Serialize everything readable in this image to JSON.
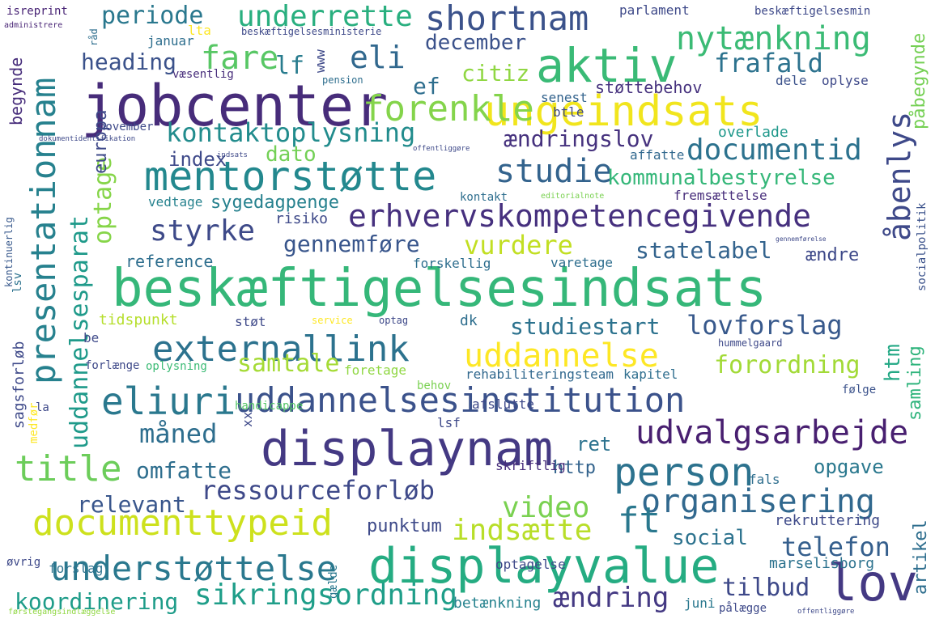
{
  "words": [
    {
      "text": "beskæftigelsesindsats",
      "color": "#35b779"
    },
    {
      "text": "jobcenter",
      "color": "#472c7a"
    },
    {
      "text": "displaynam",
      "color": "#443983"
    },
    {
      "text": "displayvalue",
      "color": "#25ac82"
    },
    {
      "text": "mentorstøtte",
      "color": "#23888e"
    },
    {
      "text": "ungeindsats",
      "color": "#f1e51d"
    },
    {
      "text": "aktiv",
      "color": "#3aba76"
    },
    {
      "text": "lov",
      "color": "#443983"
    },
    {
      "text": "presentationnam",
      "color": "#26818e"
    },
    {
      "text": "erhvervskompetencegivende",
      "color": "#46307e"
    },
    {
      "text": "uddannelsesinstitution",
      "color": "#3b528b"
    },
    {
      "text": "documenttypeid",
      "color": "#cde11d"
    },
    {
      "text": "eliuri",
      "color": "#2a788e"
    },
    {
      "text": "externallink",
      "color": "#2c728e"
    },
    {
      "text": "uddannelse",
      "color": "#fde725"
    },
    {
      "text": "title",
      "color": "#6ccd5a"
    },
    {
      "text": "person",
      "color": "#2c728e"
    },
    {
      "text": "understøttelse",
      "color": "#2a788e"
    },
    {
      "text": "forenkle",
      "color": "#84d44b"
    },
    {
      "text": "shortnam",
      "color": "#3b528b"
    },
    {
      "text": "nytænkning",
      "color": "#3bbb75"
    },
    {
      "text": "studie",
      "color": "#33638d"
    },
    {
      "text": "documentid",
      "color": "#2c728e"
    },
    {
      "text": "udvalgsarbejde",
      "color": "#481f70"
    },
    {
      "text": "organisering",
      "color": "#31688e"
    },
    {
      "text": "uddannelsesparat",
      "color": "#1f9a8a"
    },
    {
      "text": "ressourceforløb",
      "color": "#3e4989"
    },
    {
      "text": "sikringsordning",
      "color": "#1f9e89"
    },
    {
      "text": "kontaktoplysning",
      "color": "#228c8d"
    },
    {
      "text": "underrette",
      "color": "#29af7f"
    },
    {
      "text": "eli",
      "color": "#31688e"
    },
    {
      "text": "fare",
      "color": "#58c765"
    },
    {
      "text": "styrke",
      "color": "#3e4a89"
    },
    {
      "text": "åbenlys",
      "color": "#3e4989"
    },
    {
      "text": "optage",
      "color": "#86d549"
    },
    {
      "text": "video",
      "color": "#7ad151"
    },
    {
      "text": "indsætte",
      "color": "#b8de29"
    },
    {
      "text": "måned",
      "color": "#2e6e8e"
    },
    {
      "text": "lovforslag",
      "color": "#38598c"
    },
    {
      "text": "forordning",
      "color": "#a2da37"
    },
    {
      "text": "kommunalbestyrelse",
      "color": "#35b779"
    },
    {
      "text": "telefon",
      "color": "#355f8d"
    },
    {
      "text": "tilbud",
      "color": "#3e4989"
    },
    {
      "text": "ændring",
      "color": "#443983"
    },
    {
      "text": "koordinering",
      "color": "#1e9c89"
    },
    {
      "text": "ft",
      "color": "#2a788e"
    },
    {
      "text": "frafald",
      "color": "#2c728e"
    },
    {
      "text": "statelabel",
      "color": "#33638d"
    },
    {
      "text": "vurdere",
      "color": "#c2df23"
    },
    {
      "text": "gennemføre",
      "color": "#39568c"
    },
    {
      "text": "ændringslov",
      "color": "#46327e"
    },
    {
      "text": "studiestart",
      "color": "#2c728e"
    },
    {
      "text": "samtale",
      "color": "#a5db36"
    },
    {
      "text": "omfatte",
      "color": "#2e6e8e"
    },
    {
      "text": "relevant",
      "color": "#39568c"
    },
    {
      "text": "periode",
      "color": "#2a788e"
    },
    {
      "text": "heading",
      "color": "#3b528b"
    },
    {
      "text": "citiz",
      "color": "#90d743"
    },
    {
      "text": "december",
      "color": "#3b528b"
    },
    {
      "text": "ef",
      "color": "#2e6e8e"
    },
    {
      "text": "lf",
      "color": "#287c8e"
    },
    {
      "text": "dato",
      "color": "#73d056"
    },
    {
      "text": "index",
      "color": "#3e4989"
    },
    {
      "text": "social",
      "color": "#2c728e"
    },
    {
      "text": "opgave",
      "color": "#2a788e"
    },
    {
      "text": "ret",
      "color": "#2c728e"
    },
    {
      "text": "http",
      "color": "#33638d"
    },
    {
      "text": "punktum",
      "color": "#3e4a89"
    },
    {
      "text": "artikel",
      "color": "#2e6e8e"
    },
    {
      "text": "htm",
      "color": "#22a884"
    },
    {
      "text": "samling",
      "color": "#2fb47c"
    },
    {
      "text": "påbegynde",
      "color": "#75d054"
    },
    {
      "text": "europa",
      "color": "#3e4989"
    },
    {
      "text": "begynde",
      "color": "#472d7b"
    },
    {
      "text": "sygedagpenge",
      "color": "#26818e"
    },
    {
      "text": "risiko",
      "color": "#3e4989"
    },
    {
      "text": "reference",
      "color": "#2e6e8e"
    },
    {
      "text": "ændre",
      "color": "#3e4989"
    },
    {
      "text": "vedtage",
      "color": "#26828e"
    },
    {
      "text": "støttebehov",
      "color": "#46327e"
    },
    {
      "text": "oplyse",
      "color": "#3e4989"
    },
    {
      "text": "dele",
      "color": "#3b528b"
    },
    {
      "text": "senest",
      "color": "#33638d"
    },
    {
      "text": "btle",
      "color": "#3e4989"
    },
    {
      "text": "overlade",
      "color": "#1f988b"
    },
    {
      "text": "affatte",
      "color": "#31688e"
    },
    {
      "text": "fremsættelse",
      "color": "#472d7b"
    },
    {
      "text": "kontakt",
      "color": "#2e6e8e"
    },
    {
      "text": "forskellig",
      "color": "#2e6e8e"
    },
    {
      "text": "varetage",
      "color": "#2e6e8e"
    },
    {
      "text": "socialpolitik",
      "color": "#3b528b"
    },
    {
      "text": "rekruttering",
      "color": "#3e4a89"
    },
    {
      "text": "marselisborg",
      "color": "#2c728e"
    },
    {
      "text": "betænkning",
      "color": "#26828e"
    },
    {
      "text": "juni",
      "color": "#2a788e"
    },
    {
      "text": "pålægge",
      "color": "#3e4989"
    },
    {
      "text": "fals",
      "color": "#2e6e8e"
    },
    {
      "text": "skriftlig",
      "color": "#472d7b"
    },
    {
      "text": "afslutte",
      "color": "#3e4989"
    },
    {
      "text": "lsf",
      "color": "#3e4989"
    },
    {
      "text": "rehabiliteringsteam",
      "color": "#31688e"
    },
    {
      "text": "kapitel",
      "color": "#2e6e8e"
    },
    {
      "text": "følge",
      "color": "#3b528b"
    },
    {
      "text": "hummelgaard",
      "color": "#3e4989"
    },
    {
      "text": "dk",
      "color": "#2e6e8e"
    },
    {
      "text": "tidspunkt",
      "color": "#b5de2b"
    },
    {
      "text": "støt",
      "color": "#3e4989"
    },
    {
      "text": "be",
      "color": "#3e4989"
    },
    {
      "text": "forlænge",
      "color": "#3e4989"
    },
    {
      "text": "oplysning",
      "color": "#3bbb75"
    },
    {
      "text": "foretage",
      "color": "#90d743"
    },
    {
      "text": "behov",
      "color": "#7ad151"
    },
    {
      "text": "handicappe",
      "color": "#55c667"
    },
    {
      "text": "xx",
      "color": "#3e4989"
    },
    {
      "text": "sagsforløb",
      "color": "#3e4989"
    },
    {
      "text": "la",
      "color": "#3e4989"
    },
    {
      "text": "medfør",
      "color": "#fde725"
    },
    {
      "text": "lsv",
      "color": "#2c728e"
    },
    {
      "text": "kontinuerlig",
      "color": "#38598c"
    },
    {
      "text": "forslag",
      "color": "#2c728e"
    },
    {
      "text": "optagelse",
      "color": "#3e4989"
    },
    {
      "text": "øvrig",
      "color": "#3e4989"
    },
    {
      "text": "gælde",
      "color": "#2a788e"
    },
    {
      "text": "lta",
      "color": "#fde725"
    },
    {
      "text": "januar",
      "color": "#2e6e8e"
    },
    {
      "text": "november",
      "color": "#3e4989"
    },
    {
      "text": "væsentlig",
      "color": "#472d7b"
    },
    {
      "text": "pension",
      "color": "#2e6e8e"
    },
    {
      "text": "parlament",
      "color": "#3e4989"
    },
    {
      "text": "beskæftigelsesmin",
      "color": "#3e4989"
    },
    {
      "text": "beskæftigelsesministerie",
      "color": "#3e4989"
    },
    {
      "text": "isreprint",
      "color": "#482475"
    },
    {
      "text": "administrere",
      "color": "#482475"
    },
    {
      "text": "råd",
      "color": "#2e6e8e"
    },
    {
      "text": "www",
      "color": "#3e4989"
    },
    {
      "text": "dokumentidentifikation",
      "color": "#3e4989"
    },
    {
      "text": "indsats",
      "color": "#3e4989"
    },
    {
      "text": "offentliggøre",
      "color": "#3e4989"
    },
    {
      "text": "editorialnote",
      "color": "#7ad151"
    },
    {
      "text": "førstegangsindlæggelse",
      "color": "#90d743"
    },
    {
      "text": "service",
      "color": "#fde725"
    },
    {
      "text": "optag",
      "color": "#3e4989"
    },
    {
      "text": "offentliggøre",
      "color": "#3e4989"
    },
    {
      "text": "gennemførelse",
      "color": "#3e4989"
    }
  ]
}
